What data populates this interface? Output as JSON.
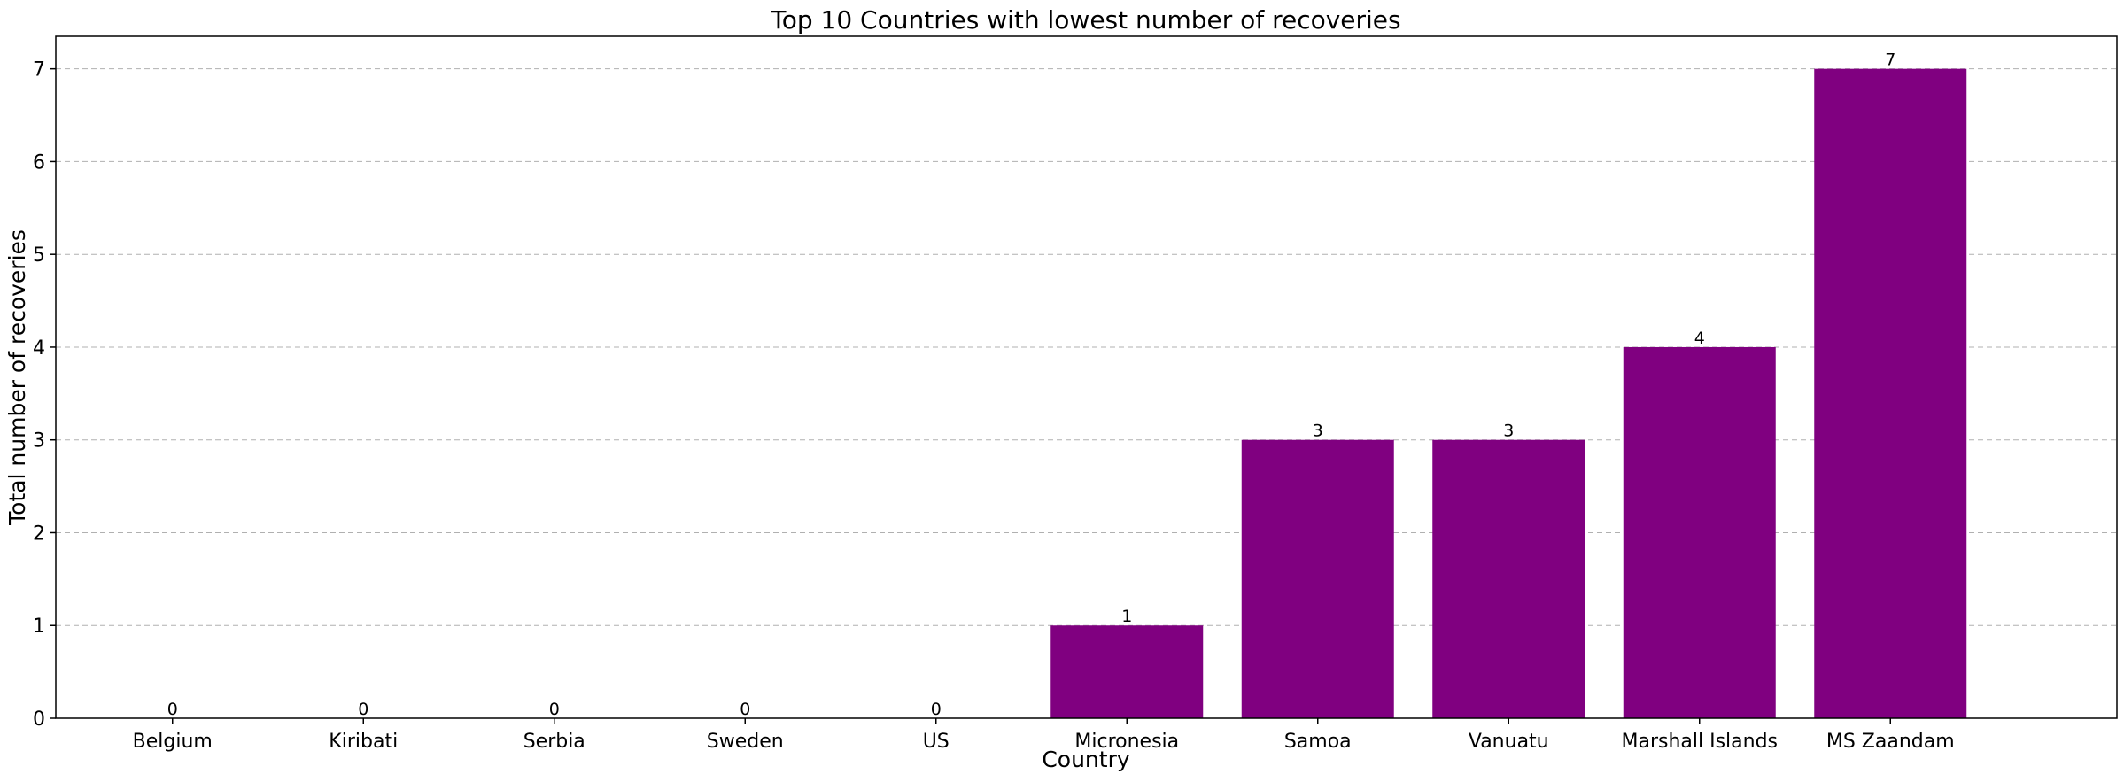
{
  "chart_data": {
    "type": "bar",
    "title": "Top 10 Countries with lowest number of recoveries",
    "xlabel": "Country",
    "ylabel": "Total number of recoveries",
    "categories": [
      "Belgium",
      "Kiribati",
      "Serbia",
      "Sweden",
      "US",
      "Micronesia",
      "Samoa",
      "Vanuatu",
      "Marshall Islands",
      "MS Zaandam"
    ],
    "values": [
      0,
      0,
      0,
      0,
      0,
      1,
      3,
      3,
      4,
      7
    ],
    "ylim": [
      0,
      7.35
    ],
    "yticks": [
      0,
      1,
      2,
      3,
      4,
      5,
      6,
      7
    ],
    "bar_color": "#800080",
    "grid": "y-dashed",
    "legend": "none",
    "data_labels": true
  }
}
